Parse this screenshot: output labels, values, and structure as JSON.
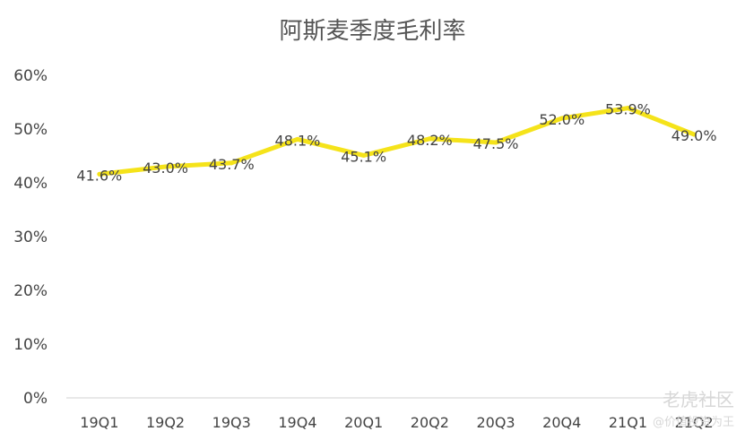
{
  "chart_data": {
    "type": "line",
    "title": "阿斯麦季度毛利率",
    "categories": [
      "19Q1",
      "19Q2",
      "19Q3",
      "19Q4",
      "20Q1",
      "20Q2",
      "20Q3",
      "20Q4",
      "21Q1",
      "21Q2"
    ],
    "series": [
      {
        "values": [
          41.6,
          43.0,
          43.7,
          48.1,
          45.1,
          48.2,
          47.5,
          52.0,
          53.9,
          49.0
        ]
      }
    ],
    "data_labels": [
      "41.6%",
      "43.0%",
      "43.7%",
      "48.1%",
      "45.1%",
      "48.2%",
      "47.5%",
      "52.0%",
      "53.9%",
      "49.0%"
    ],
    "yticks": [
      "0%",
      "10%",
      "20%",
      "30%",
      "40%",
      "50%",
      "60%"
    ],
    "ylim": [
      0,
      60
    ],
    "xlabel": "",
    "ylabel": "",
    "grid": false,
    "colors": {
      "line": "#F5E31A",
      "text": "#444444",
      "axis": "#d9d9d9"
    }
  },
  "watermark": {
    "main": "老虎社区",
    "sub": "@价值投资为王"
  }
}
